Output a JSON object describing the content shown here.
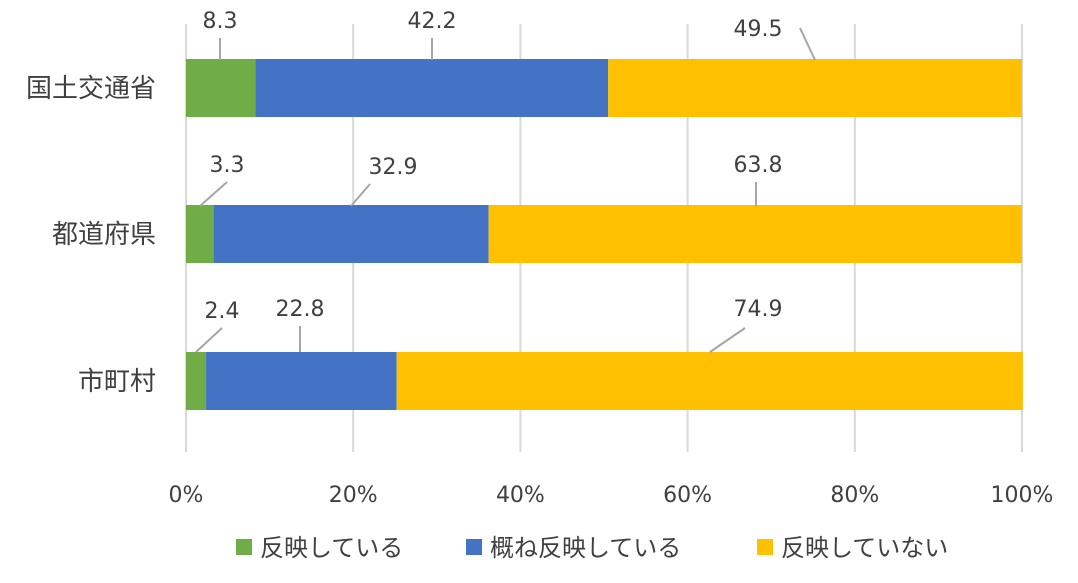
{
  "chart_data": {
    "type": "bar",
    "orientation": "horizontal",
    "stacked": "percent",
    "title": "",
    "xlabel": "",
    "ylabel": "",
    "xlim": [
      0,
      100
    ],
    "x_ticks": [
      "0%",
      "20%",
      "40%",
      "60%",
      "80%",
      "100%"
    ],
    "grid": "vertical",
    "legend_position": "bottom",
    "categories": [
      "国土交通省",
      "都道府県",
      "市町村"
    ],
    "series": [
      {
        "name": "反映している",
        "color": "#70ad47",
        "values": [
          8.3,
          3.3,
          2.4
        ],
        "labels": [
          "8.3",
          "3.3",
          "2.4"
        ]
      },
      {
        "name": "概ね反映している",
        "color": "#4472c4",
        "values": [
          42.2,
          32.9,
          22.8
        ],
        "labels": [
          "42.2",
          "32.9",
          "22.8"
        ]
      },
      {
        "name": "反映していない",
        "color": "#ffc000",
        "values": [
          49.5,
          63.8,
          74.9
        ],
        "labels": [
          "49.5",
          "63.8",
          "74.9"
        ]
      }
    ]
  }
}
